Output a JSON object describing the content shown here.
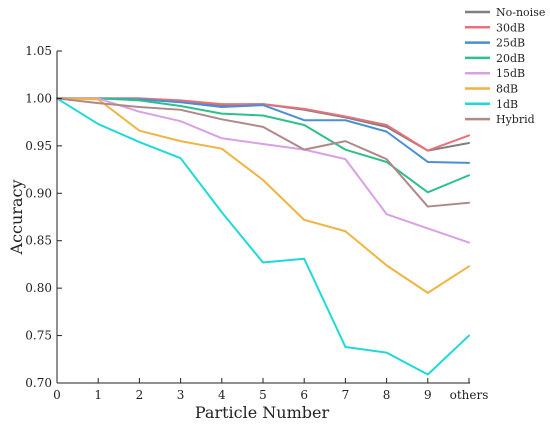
{
  "chart_data": {
    "type": "line",
    "xlabel": "Particle Number",
    "ylabel": "Accuracy",
    "x_ticks": [
      "0",
      "1",
      "2",
      "3",
      "4",
      "5",
      "6",
      "7",
      "8",
      "9",
      "others"
    ],
    "x": [
      0,
      1,
      2,
      3,
      4,
      5,
      6,
      7,
      8,
      9,
      10
    ],
    "ylim": [
      0.7,
      1.05
    ],
    "y_ticks": [
      "0.70",
      "0.75",
      "0.80",
      "0.85",
      "0.90",
      "0.95",
      "1.00",
      "1.05"
    ],
    "grid": false,
    "legend_position": "top-right",
    "series": [
      {
        "name": "No-noise",
        "color": "#808080",
        "values": [
          1.0,
          1.0,
          1.0,
          0.997,
          0.993,
          0.994,
          0.988,
          0.98,
          0.97,
          0.945,
          0.953
        ]
      },
      {
        "name": "30dB",
        "color": "#e8707a",
        "values": [
          1.0,
          1.0,
          1.0,
          0.998,
          0.994,
          0.994,
          0.989,
          0.981,
          0.972,
          0.945,
          0.961
        ]
      },
      {
        "name": "25dB",
        "color": "#4a8fd4",
        "values": [
          1.0,
          1.0,
          0.999,
          0.996,
          0.991,
          0.993,
          0.977,
          0.977,
          0.965,
          0.933,
          0.932
        ]
      },
      {
        "name": "20dB",
        "color": "#2ec08a",
        "values": [
          1.0,
          1.0,
          0.998,
          0.992,
          0.984,
          0.982,
          0.972,
          0.946,
          0.933,
          0.901,
          0.919
        ]
      },
      {
        "name": "15dB",
        "color": "#d9a0e6",
        "values": [
          1.0,
          1.0,
          0.986,
          0.976,
          0.958,
          0.952,
          0.946,
          0.936,
          0.878,
          0.863,
          0.848
        ]
      },
      {
        "name": "8dB",
        "color": "#f0b442",
        "values": [
          1.0,
          0.999,
          0.966,
          0.955,
          0.947,
          0.914,
          0.872,
          0.86,
          0.824,
          0.795,
          0.823
        ]
      },
      {
        "name": "1dB",
        "color": "#1fd9d9",
        "values": [
          1.0,
          0.973,
          0.954,
          0.937,
          0.88,
          0.827,
          0.831,
          0.738,
          0.732,
          0.709,
          0.75
        ]
      },
      {
        "name": "Hybrid",
        "color": "#b08888",
        "values": [
          1.0,
          0.995,
          0.991,
          0.988,
          0.978,
          0.97,
          0.946,
          0.955,
          0.936,
          0.886,
          0.89
        ]
      }
    ]
  }
}
